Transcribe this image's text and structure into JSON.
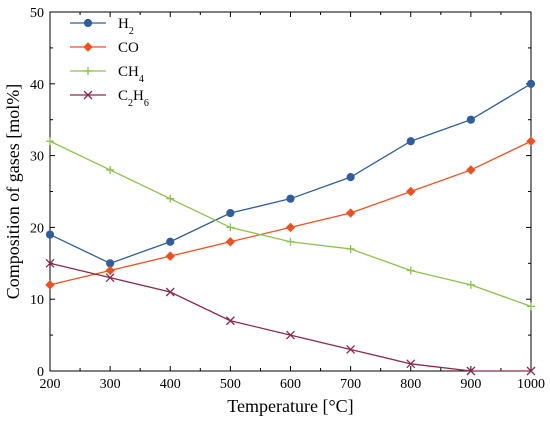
{
  "chart_data": {
    "type": "line",
    "xlabel": "Temperature [°C]",
    "ylabel": "Composition of gases [mol%]",
    "xlim": [
      200,
      1000
    ],
    "ylim": [
      0,
      50
    ],
    "xticks": [
      200,
      300,
      400,
      500,
      600,
      700,
      800,
      900,
      1000
    ],
    "yticks": [
      0,
      10,
      20,
      30,
      40,
      50
    ],
    "x": [
      200,
      300,
      400,
      500,
      600,
      700,
      800,
      900,
      1000
    ],
    "grid": false,
    "legend_position": "top-left",
    "series": [
      {
        "name": "H2",
        "label_main": "H",
        "label_sub": "2",
        "color": "#2e5e9e",
        "marker": "circle",
        "values": [
          19,
          15,
          18,
          22,
          24,
          27,
          32,
          35,
          40
        ]
      },
      {
        "name": "CO",
        "label_main": "CO",
        "label_sub": "",
        "color": "#f0501e",
        "marker": "diamond",
        "values": [
          12,
          14,
          16,
          18,
          20,
          22,
          25,
          28,
          32
        ]
      },
      {
        "name": "CH4",
        "label_main": "CH",
        "label_sub": "4",
        "color": "#8cc34a",
        "marker": "plus",
        "values": [
          32,
          28,
          24,
          20,
          18,
          17,
          14,
          12,
          9
        ]
      },
      {
        "name": "C2H6",
        "label_main": "C",
        "label_sub": "2",
        "label_main2": "H",
        "label_sub2": "6",
        "color": "#8b2a4a",
        "marker": "x",
        "values": [
          15,
          13,
          11,
          7,
          5,
          3,
          1,
          0,
          0
        ]
      }
    ]
  }
}
